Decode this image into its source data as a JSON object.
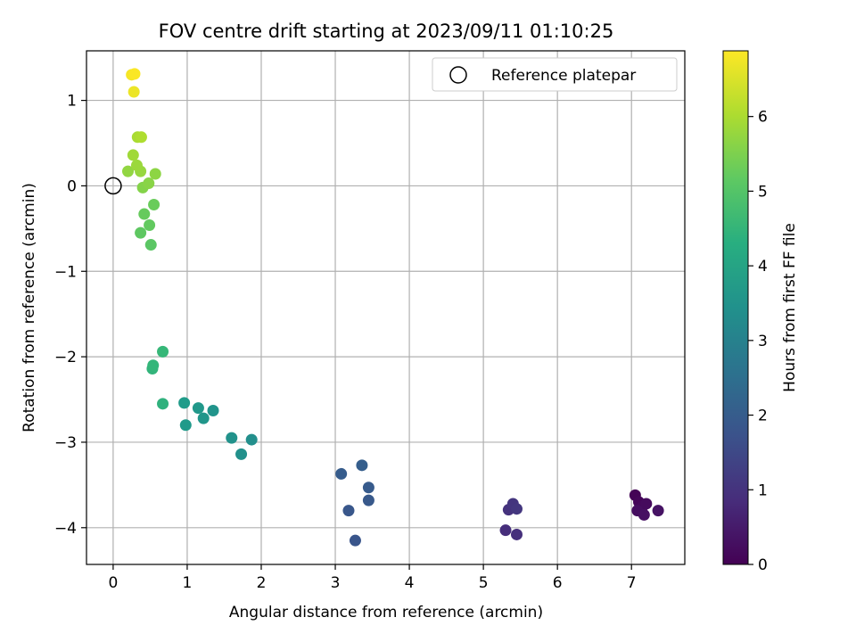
{
  "chart_data": {
    "type": "scatter",
    "title": "FOV centre drift starting at 2023/09/11 01:10:25",
    "xlabel": "Angular distance from reference (arcmin)",
    "ylabel": "Rotation from reference (arcmin)",
    "xlim": [
      -0.36,
      7.72
    ],
    "ylim": [
      -4.43,
      1.58
    ],
    "xticks": [
      0,
      1,
      2,
      3,
      4,
      5,
      6,
      7
    ],
    "yticks": [
      -4,
      -3,
      -2,
      -1,
      0,
      1
    ],
    "xtick_labels": [
      "0",
      "1",
      "2",
      "3",
      "4",
      "5",
      "6",
      "7"
    ],
    "ytick_labels": [
      "−4",
      "−3",
      "−2",
      "−1",
      "0",
      "1"
    ],
    "grid": true,
    "legend": {
      "position": "top-right",
      "label": "Reference platepar"
    },
    "reference_point": {
      "x": 0,
      "y": 0
    },
    "colorbar": {
      "label": "Hours from first FF file",
      "range": [
        0,
        6.88
      ],
      "ticks": [
        0,
        1,
        2,
        3,
        4,
        5,
        6
      ],
      "tick_labels": [
        "0",
        "1",
        "2",
        "3",
        "4",
        "5",
        "6"
      ],
      "colormap": "viridis"
    },
    "points": [
      {
        "x": 7.05,
        "y": -3.62,
        "t": 0.05
      },
      {
        "x": 7.1,
        "y": -3.7,
        "t": 0.1
      },
      {
        "x": 7.15,
        "y": -3.75,
        "t": 0.15
      },
      {
        "x": 7.2,
        "y": -3.72,
        "t": 0.2
      },
      {
        "x": 7.08,
        "y": -3.8,
        "t": 0.25
      },
      {
        "x": 7.17,
        "y": -3.85,
        "t": 0.3
      },
      {
        "x": 7.36,
        "y": -3.8,
        "t": 0.35
      },
      {
        "x": 5.3,
        "y": -4.03,
        "t": 0.9
      },
      {
        "x": 5.45,
        "y": -4.08,
        "t": 0.95
      },
      {
        "x": 5.34,
        "y": -3.79,
        "t": 1.0
      },
      {
        "x": 5.4,
        "y": -3.72,
        "t": 1.05
      },
      {
        "x": 5.45,
        "y": -3.78,
        "t": 1.1
      },
      {
        "x": 3.27,
        "y": -4.15,
        "t": 1.8
      },
      {
        "x": 3.18,
        "y": -3.8,
        "t": 1.85
      },
      {
        "x": 3.45,
        "y": -3.68,
        "t": 1.9
      },
      {
        "x": 3.45,
        "y": -3.53,
        "t": 1.95
      },
      {
        "x": 3.08,
        "y": -3.37,
        "t": 2.0
      },
      {
        "x": 3.36,
        "y": -3.27,
        "t": 2.05
      },
      {
        "x": 1.87,
        "y": -2.97,
        "t": 3.4
      },
      {
        "x": 1.73,
        "y": -3.14,
        "t": 3.45
      },
      {
        "x": 1.6,
        "y": -2.95,
        "t": 3.5
      },
      {
        "x": 1.35,
        "y": -2.63,
        "t": 3.55
      },
      {
        "x": 1.22,
        "y": -2.72,
        "t": 3.6
      },
      {
        "x": 1.15,
        "y": -2.6,
        "t": 3.65
      },
      {
        "x": 0.98,
        "y": -2.8,
        "t": 3.7
      },
      {
        "x": 0.96,
        "y": -2.54,
        "t": 3.75
      },
      {
        "x": 0.67,
        "y": -2.55,
        "t": 4.4
      },
      {
        "x": 0.53,
        "y": -2.14,
        "t": 4.5
      },
      {
        "x": 0.54,
        "y": -2.1,
        "t": 4.55
      },
      {
        "x": 0.67,
        "y": -1.94,
        "t": 4.6
      },
      {
        "x": 0.51,
        "y": -0.69,
        "t": 5.1
      },
      {
        "x": 0.37,
        "y": -0.55,
        "t": 5.15
      },
      {
        "x": 0.49,
        "y": -0.46,
        "t": 5.2
      },
      {
        "x": 0.42,
        "y": -0.33,
        "t": 5.25
      },
      {
        "x": 0.55,
        "y": -0.22,
        "t": 5.3
      },
      {
        "x": 0.4,
        "y": -0.02,
        "t": 5.6
      },
      {
        "x": 0.48,
        "y": 0.03,
        "t": 5.65
      },
      {
        "x": 0.57,
        "y": 0.14,
        "t": 5.7
      },
      {
        "x": 0.2,
        "y": 0.17,
        "t": 5.75
      },
      {
        "x": 0.37,
        "y": 0.17,
        "t": 5.8
      },
      {
        "x": 0.32,
        "y": 0.24,
        "t": 5.85
      },
      {
        "x": 0.27,
        "y": 0.36,
        "t": 5.9
      },
      {
        "x": 0.33,
        "y": 0.57,
        "t": 6.0
      },
      {
        "x": 0.38,
        "y": 0.57,
        "t": 6.05
      },
      {
        "x": 0.28,
        "y": 1.1,
        "t": 6.7
      },
      {
        "x": 0.25,
        "y": 1.3,
        "t": 6.8
      },
      {
        "x": 0.29,
        "y": 1.31,
        "t": 6.85
      }
    ]
  }
}
